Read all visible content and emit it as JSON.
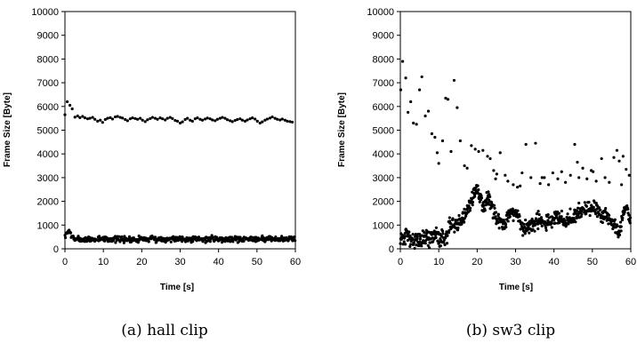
{
  "colors": {
    "marker": "#000000",
    "frame": "#000000",
    "background": "#ffffff"
  },
  "chart_data": [
    {
      "type": "scatter",
      "caption": "(a) hall clip",
      "xlabel": "Time [s]",
      "ylabel": "Frame Size [Byte]",
      "xlim": [
        0,
        60
      ],
      "ylim": [
        0,
        10000
      ],
      "xticks": [
        0,
        10,
        20,
        30,
        40,
        50,
        60
      ],
      "yticks": [
        0,
        1000,
        2000,
        3000,
        4000,
        5000,
        6000,
        7000,
        8000,
        9000,
        10000
      ],
      "grid": false,
      "marker_color": "#000000",
      "series": [
        {
          "role": "upper",
          "points": [
            [
              0.0,
              5650
            ],
            [
              0.6,
              6200
            ],
            [
              1.3,
              6050
            ],
            [
              1.9,
              5900
            ],
            [
              2.6,
              5550
            ],
            [
              3.3,
              5600
            ],
            [
              3.9,
              5530
            ],
            [
              4.6,
              5580
            ],
            [
              5.2,
              5520
            ],
            [
              5.9,
              5480
            ],
            [
              6.5,
              5500
            ],
            [
              7.2,
              5540
            ],
            [
              7.8,
              5460
            ],
            [
              8.5,
              5380
            ],
            [
              9.2,
              5420
            ],
            [
              9.8,
              5330
            ],
            [
              10.5,
              5450
            ],
            [
              11.1,
              5500
            ],
            [
              11.8,
              5530
            ],
            [
              12.4,
              5470
            ],
            [
              13.1,
              5560
            ],
            [
              13.7,
              5580
            ],
            [
              14.4,
              5540
            ],
            [
              15.0,
              5510
            ],
            [
              15.7,
              5450
            ],
            [
              16.3,
              5400
            ],
            [
              17.0,
              5480
            ],
            [
              17.6,
              5520
            ],
            [
              18.3,
              5490
            ],
            [
              18.9,
              5460
            ],
            [
              19.6,
              5500
            ],
            [
              20.2,
              5420
            ],
            [
              20.9,
              5360
            ],
            [
              21.5,
              5440
            ],
            [
              22.2,
              5490
            ],
            [
              22.8,
              5540
            ],
            [
              23.5,
              5500
            ],
            [
              24.1,
              5460
            ],
            [
              24.8,
              5520
            ],
            [
              25.4,
              5480
            ],
            [
              26.1,
              5430
            ],
            [
              26.7,
              5500
            ],
            [
              27.4,
              5540
            ],
            [
              28.0,
              5490
            ],
            [
              28.7,
              5410
            ],
            [
              29.3,
              5380
            ],
            [
              30.0,
              5300
            ],
            [
              30.6,
              5350
            ],
            [
              31.3,
              5450
            ],
            [
              31.9,
              5500
            ],
            [
              32.6,
              5420
            ],
            [
              33.2,
              5380
            ],
            [
              33.9,
              5480
            ],
            [
              34.5,
              5520
            ],
            [
              35.2,
              5460
            ],
            [
              35.8,
              5420
            ],
            [
              36.5,
              5470
            ],
            [
              37.1,
              5510
            ],
            [
              37.8,
              5480
            ],
            [
              38.4,
              5430
            ],
            [
              39.1,
              5400
            ],
            [
              39.7,
              5460
            ],
            [
              40.4,
              5500
            ],
            [
              41.0,
              5540
            ],
            [
              41.7,
              5500
            ],
            [
              42.3,
              5440
            ],
            [
              43.0,
              5400
            ],
            [
              43.6,
              5360
            ],
            [
              44.3,
              5410
            ],
            [
              44.9,
              5450
            ],
            [
              45.6,
              5480
            ],
            [
              46.2,
              5420
            ],
            [
              46.9,
              5380
            ],
            [
              47.5,
              5430
            ],
            [
              48.2,
              5480
            ],
            [
              48.8,
              5520
            ],
            [
              49.5,
              5470
            ],
            [
              50.1,
              5380
            ],
            [
              50.8,
              5300
            ],
            [
              51.4,
              5350
            ],
            [
              52.1,
              5420
            ],
            [
              52.7,
              5470
            ],
            [
              53.4,
              5510
            ],
            [
              54.0,
              5560
            ],
            [
              54.7,
              5500
            ],
            [
              55.3,
              5460
            ],
            [
              56.0,
              5430
            ],
            [
              56.6,
              5470
            ],
            [
              57.3,
              5420
            ],
            [
              57.9,
              5380
            ],
            [
              58.6,
              5360
            ],
            [
              59.2,
              5340
            ]
          ]
        },
        {
          "role": "lower",
          "base": [
            [
              0,
              450
            ],
            [
              0.5,
              650
            ],
            [
              1.0,
              780
            ],
            [
              1.5,
              620
            ],
            [
              2.0,
              470
            ],
            [
              3,
              400
            ],
            [
              5,
              380
            ],
            [
              8,
              400
            ],
            [
              10,
              430
            ],
            [
              13,
              410
            ],
            [
              16,
              400
            ],
            [
              20,
              420
            ],
            [
              25,
              410
            ],
            [
              30,
              430
            ],
            [
              35,
              400
            ],
            [
              40,
              420
            ],
            [
              45,
              410
            ],
            [
              50,
              430
            ],
            [
              55,
              400
            ],
            [
              60,
              440
            ]
          ],
          "spread": 120,
          "count": 520
        }
      ]
    },
    {
      "type": "scatter",
      "caption": "(b) sw3 clip",
      "xlabel": "Time [s]",
      "ylabel": "Frame Size [Byte]",
      "xlim": [
        0,
        60
      ],
      "ylim": [
        0,
        10000
      ],
      "xticks": [
        0,
        10,
        20,
        30,
        40,
        50,
        60
      ],
      "yticks": [
        0,
        1000,
        2000,
        3000,
        4000,
        5000,
        6000,
        7000,
        8000,
        9000,
        10000
      ],
      "grid": false,
      "marker_color": "#000000",
      "series": [
        {
          "role": "upper",
          "points": [
            [
              0.1,
              6700
            ],
            [
              0.6,
              7900
            ],
            [
              1.4,
              7200
            ],
            [
              2.0,
              5750
            ],
            [
              2.7,
              6200
            ],
            [
              3.4,
              5300
            ],
            [
              4.2,
              5250
            ],
            [
              5.0,
              6700
            ],
            [
              5.6,
              7250
            ],
            [
              6.5,
              5600
            ],
            [
              7.3,
              5800
            ],
            [
              8.2,
              4850
            ],
            [
              9.0,
              4700
            ],
            [
              9.6,
              4050
            ],
            [
              10.0,
              3600
            ],
            [
              11.0,
              4550
            ],
            [
              11.8,
              6350
            ],
            [
              12.4,
              6300
            ],
            [
              13.2,
              4100
            ],
            [
              14.0,
              7100
            ],
            [
              14.8,
              5950
            ],
            [
              15.6,
              4550
            ],
            [
              16.7,
              3500
            ],
            [
              17.4,
              3400
            ],
            [
              18.5,
              4350
            ],
            [
              19.5,
              4200
            ],
            [
              20.4,
              4100
            ],
            [
              21.5,
              4150
            ],
            [
              22.7,
              3900
            ],
            [
              23.4,
              3800
            ],
            [
              24.3,
              3300
            ],
            [
              25.1,
              3150
            ],
            [
              26.0,
              4050
            ],
            [
              27.3,
              3100
            ],
            [
              28.0,
              2850
            ],
            [
              29.4,
              2700
            ],
            [
              30.5,
              2600
            ],
            [
              31.7,
              3200
            ],
            [
              32.7,
              4400
            ],
            [
              34.0,
              3000
            ],
            [
              35.2,
              4450
            ],
            [
              36.4,
              2750
            ],
            [
              37.5,
              3000
            ],
            [
              38.6,
              2700
            ],
            [
              39.7,
              3200
            ],
            [
              41.0,
              2950
            ],
            [
              42.0,
              3250
            ],
            [
              43.0,
              2800
            ],
            [
              44.3,
              3100
            ],
            [
              45.4,
              4400
            ],
            [
              46.5,
              3000
            ],
            [
              47.5,
              3400
            ],
            [
              48.6,
              2950
            ],
            [
              49.7,
              3300
            ],
            [
              51.0,
              2850
            ],
            [
              52.4,
              3800
            ],
            [
              53.3,
              3000
            ],
            [
              54.4,
              2800
            ],
            [
              55.6,
              3850
            ],
            [
              56.4,
              4150
            ],
            [
              57.0,
              3700
            ],
            [
              58.0,
              3900
            ],
            [
              58.8,
              3350
            ],
            [
              59.6,
              3100
            ],
            [
              57.6,
              2700
            ],
            [
              50.2,
              3250
            ],
            [
              24.8,
              2950
            ],
            [
              31.2,
              2650
            ],
            [
              36.9,
              3000
            ],
            [
              46.1,
              3650
            ]
          ]
        },
        {
          "role": "lower",
          "base": [
            [
              0,
              400
            ],
            [
              2,
              550
            ],
            [
              4,
              300
            ],
            [
              6,
              500
            ],
            [
              7.5,
              400
            ],
            [
              9,
              600
            ],
            [
              10,
              450
            ],
            [
              12,
              550
            ],
            [
              13,
              1100
            ],
            [
              15,
              1000
            ],
            [
              16,
              1300
            ],
            [
              17,
              1500
            ],
            [
              18,
              1700
            ],
            [
              19,
              2300
            ],
            [
              20,
              2600
            ],
            [
              21,
              2100
            ],
            [
              22,
              1800
            ],
            [
              23,
              2300
            ],
            [
              24,
              1700
            ],
            [
              25,
              1200
            ],
            [
              27,
              1000
            ],
            [
              28,
              1400
            ],
            [
              30,
              1500
            ],
            [
              31,
              1300
            ],
            [
              32,
              800
            ],
            [
              34,
              1000
            ],
            [
              36,
              1200
            ],
            [
              38,
              1100
            ],
            [
              40,
              1200
            ],
            [
              41,
              1400
            ],
            [
              43,
              1100
            ],
            [
              45,
              1300
            ],
            [
              46,
              1500
            ],
            [
              48,
              1600
            ],
            [
              50,
              1700
            ],
            [
              52,
              1500
            ],
            [
              54,
              1400
            ],
            [
              55,
              1000
            ],
            [
              56,
              900
            ],
            [
              57,
              700
            ],
            [
              58,
              1400
            ],
            [
              59,
              1800
            ],
            [
              60,
              1100
            ]
          ],
          "spread": 330,
          "count": 700
        }
      ]
    }
  ]
}
